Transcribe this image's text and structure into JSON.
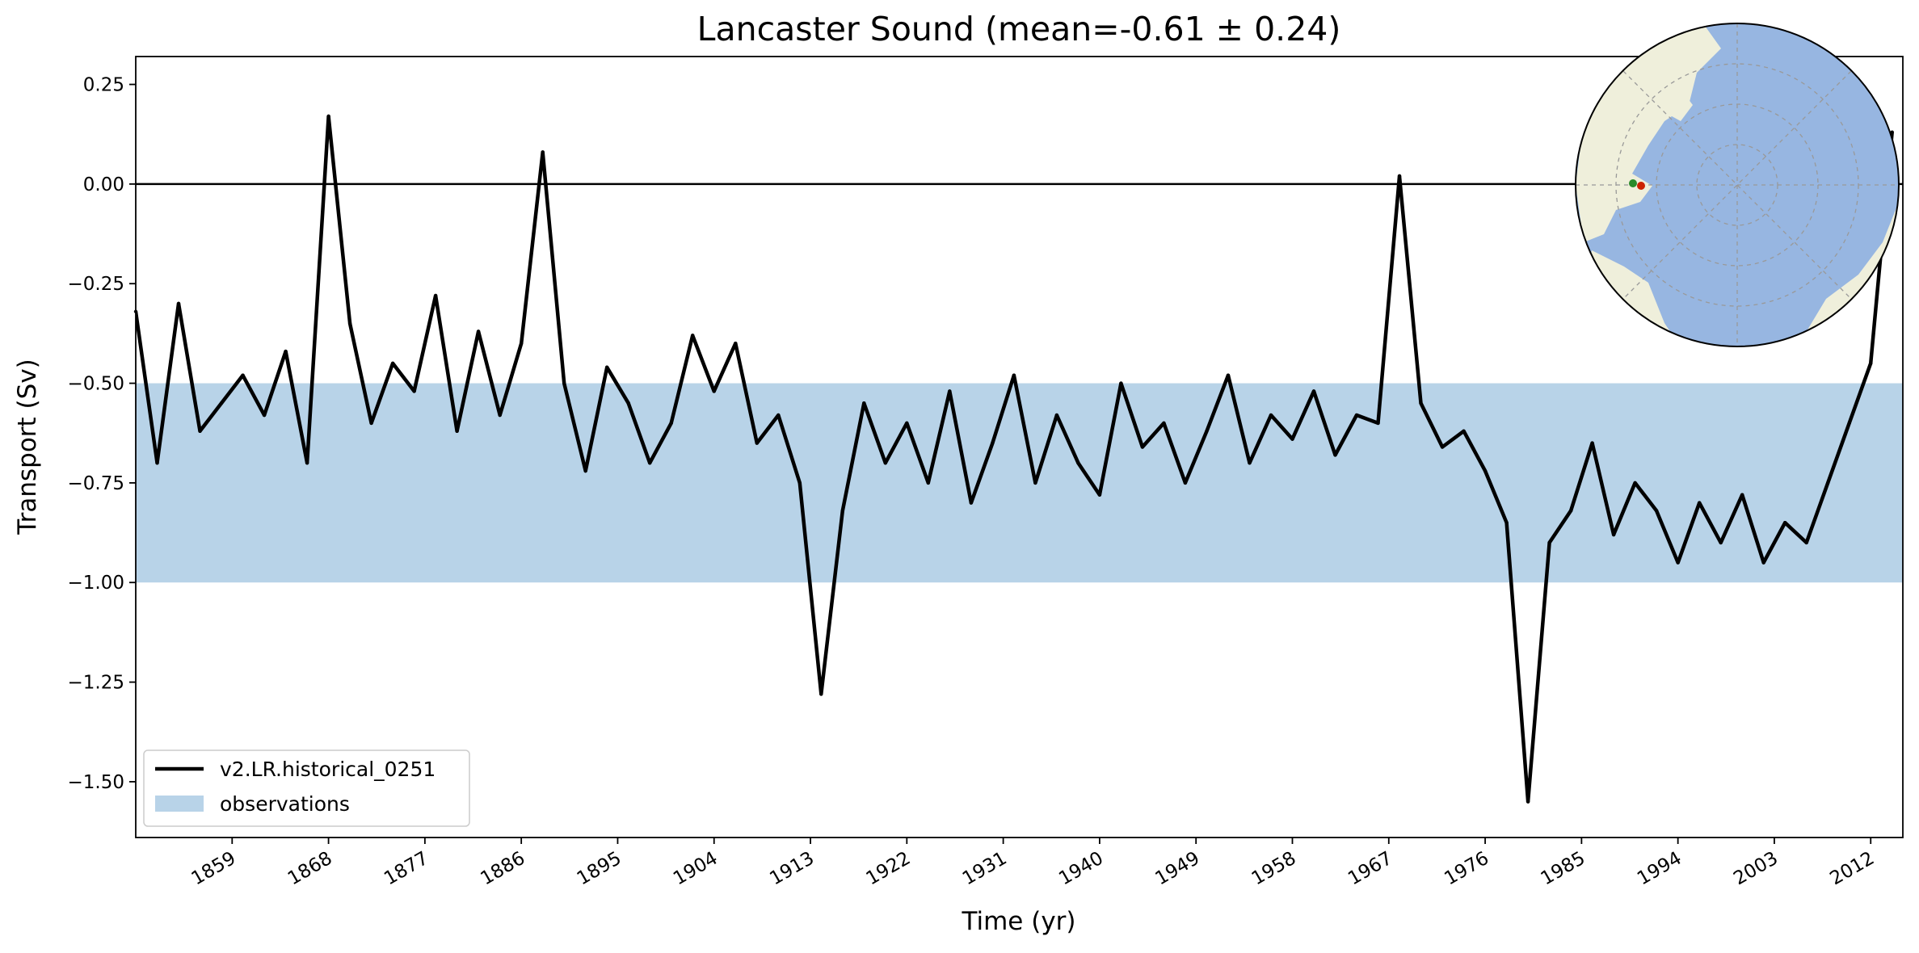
{
  "chart_data": {
    "type": "line",
    "title": "Lancaster Sound (mean=-0.61 ± 0.24)",
    "xlabel": "Time (yr)",
    "ylabel": "Transport (Sv)",
    "xlim": [
      1850,
      2015
    ],
    "ylim": [
      -1.64,
      0.32
    ],
    "x_ticks": [
      1859,
      1868,
      1877,
      1886,
      1895,
      1904,
      1913,
      1922,
      1931,
      1940,
      1949,
      1958,
      1967,
      1976,
      1985,
      1994,
      2003,
      2012
    ],
    "x_tick_labels": [
      "1859",
      "1868",
      "1877",
      "1886",
      "1895",
      "1904",
      "1913",
      "1922",
      "1931",
      "1940",
      "1949",
      "1958",
      "1967",
      "1976",
      "1985",
      "1994",
      "2003",
      "2012"
    ],
    "y_ticks": [
      0.25,
      0.0,
      -0.25,
      -0.5,
      -0.75,
      -1.0,
      -1.25,
      -1.5
    ],
    "y_tick_labels": [
      "0.25",
      "0.00",
      "−0.25",
      "−0.50",
      "−0.75",
      "−1.00",
      "−1.25",
      "−1.50"
    ],
    "reference_line": 0,
    "observations_band": {
      "name": "observations",
      "low": -1.0,
      "high": -0.5,
      "color": "#b8d3e8"
    },
    "legend_position": "lower-left",
    "grid": false,
    "series": [
      {
        "name": "v2.LR.historical_0251",
        "color": "#000000",
        "x": [
          1850,
          1852,
          1854,
          1856,
          1858,
          1860,
          1862,
          1864,
          1866,
          1868,
          1870,
          1872,
          1874,
          1876,
          1878,
          1880,
          1882,
          1884,
          1886,
          1888,
          1890,
          1892,
          1894,
          1896,
          1898,
          1900,
          1902,
          1904,
          1906,
          1908,
          1910,
          1912,
          1914,
          1916,
          1918,
          1920,
          1922,
          1924,
          1926,
          1928,
          1930,
          1932,
          1934,
          1936,
          1938,
          1940,
          1942,
          1944,
          1946,
          1948,
          1950,
          1952,
          1954,
          1956,
          1958,
          1960,
          1962,
          1964,
          1966,
          1968,
          1970,
          1972,
          1974,
          1976,
          1978,
          1980,
          1982,
          1984,
          1986,
          1988,
          1990,
          1992,
          1994,
          1996,
          1998,
          2000,
          2002,
          2004,
          2006,
          2008,
          2010,
          2012,
          2014
        ],
        "y": [
          -0.32,
          -0.7,
          -0.3,
          -0.62,
          -0.55,
          -0.48,
          -0.58,
          -0.42,
          -0.7,
          0.17,
          -0.35,
          -0.6,
          -0.45,
          -0.52,
          -0.28,
          -0.62,
          -0.37,
          -0.58,
          -0.4,
          0.08,
          -0.5,
          -0.72,
          -0.46,
          -0.55,
          -0.7,
          -0.6,
          -0.38,
          -0.52,
          -0.4,
          -0.65,
          -0.58,
          -0.75,
          -1.28,
          -0.82,
          -0.55,
          -0.7,
          -0.6,
          -0.75,
          -0.52,
          -0.8,
          -0.65,
          -0.48,
          -0.75,
          -0.58,
          -0.7,
          -0.78,
          -0.5,
          -0.66,
          -0.6,
          -0.75,
          -0.62,
          -0.48,
          -0.7,
          -0.58,
          -0.64,
          -0.52,
          -0.68,
          -0.58,
          -0.6,
          0.02,
          -0.55,
          -0.66,
          -0.62,
          -0.72,
          -0.85,
          -1.55,
          -0.9,
          -0.82,
          -0.65,
          -0.88,
          -0.75,
          -0.82,
          -0.95,
          -0.8,
          -0.9,
          -0.78,
          -0.95,
          -0.85,
          -0.9,
          -0.75,
          -0.6,
          -0.45,
          0.13
        ]
      }
    ],
    "inset": {
      "type": "map",
      "projection": "north-polar-stereographic",
      "marker_colors": [
        "#2a8a2a",
        "#cc2200"
      ],
      "ocean_color": "#97b6e1",
      "land_color": "#efefdb"
    }
  }
}
